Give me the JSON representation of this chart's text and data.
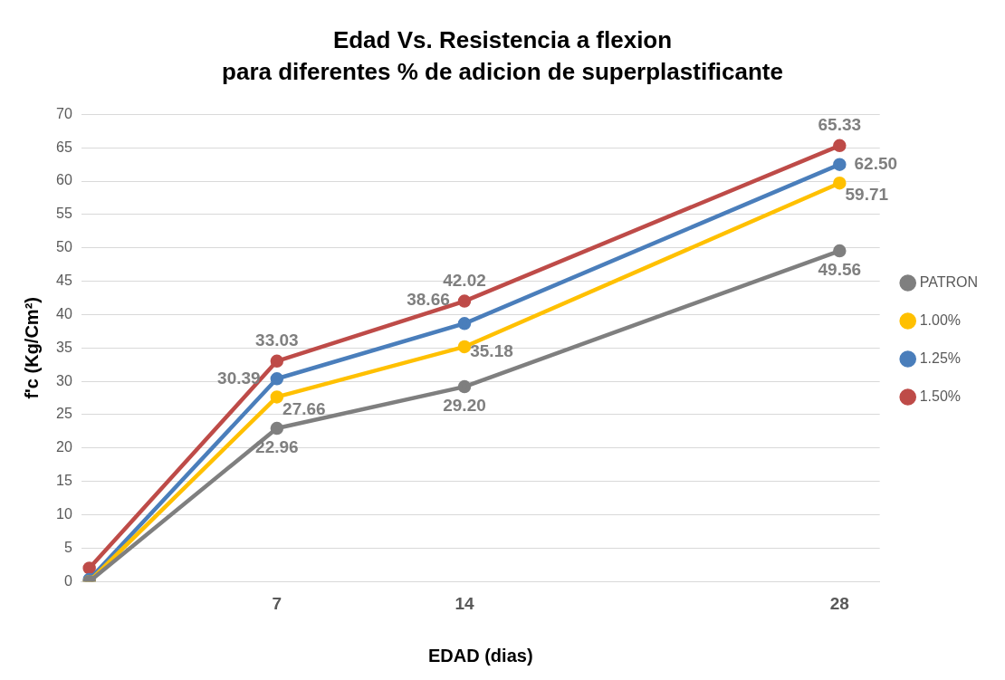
{
  "chart_data": {
    "type": "line",
    "title": "Edad Vs. Resistencia a flexion",
    "subtitle": "para diferentes % de adicion de superplastificante",
    "xlabel": "EDAD (dias)",
    "ylabel": "f'c (Kg/Cm²)",
    "x": [
      0,
      7,
      14,
      28
    ],
    "series": [
      {
        "name": "PATRON",
        "color": "#7f7f7f",
        "values": [
          0,
          22.96,
          29.2,
          49.56
        ],
        "value_labels": [
          null,
          "22.96",
          "29.20",
          "49.56"
        ]
      },
      {
        "name": "1.00%",
        "color": "#ffc000",
        "values": [
          0,
          27.66,
          35.18,
          59.71
        ],
        "value_labels": [
          null,
          "27.66",
          "35.18",
          "59.71"
        ]
      },
      {
        "name": "1.25%",
        "color": "#4a7ebb",
        "values": [
          0.3,
          30.39,
          38.66,
          62.5
        ],
        "value_labels": [
          null,
          "30.39",
          "38.66",
          "62.50"
        ]
      },
      {
        "name": "1.50%",
        "color": "#be4b48",
        "values": [
          2,
          33.03,
          42.02,
          65.33
        ],
        "value_labels": [
          null,
          "33.03",
          "42.02",
          "65.33"
        ]
      }
    ],
    "xlim": [
      -0.3,
      29.5
    ],
    "xticks": [
      7,
      14,
      28
    ],
    "ylim": [
      0,
      70
    ],
    "yticks": [
      0,
      5,
      10,
      15,
      20,
      25,
      30,
      35,
      40,
      45,
      50,
      55,
      60,
      65,
      70
    ],
    "grid": "y",
    "legend": "right",
    "marker": "circle",
    "line_style": "solid"
  }
}
